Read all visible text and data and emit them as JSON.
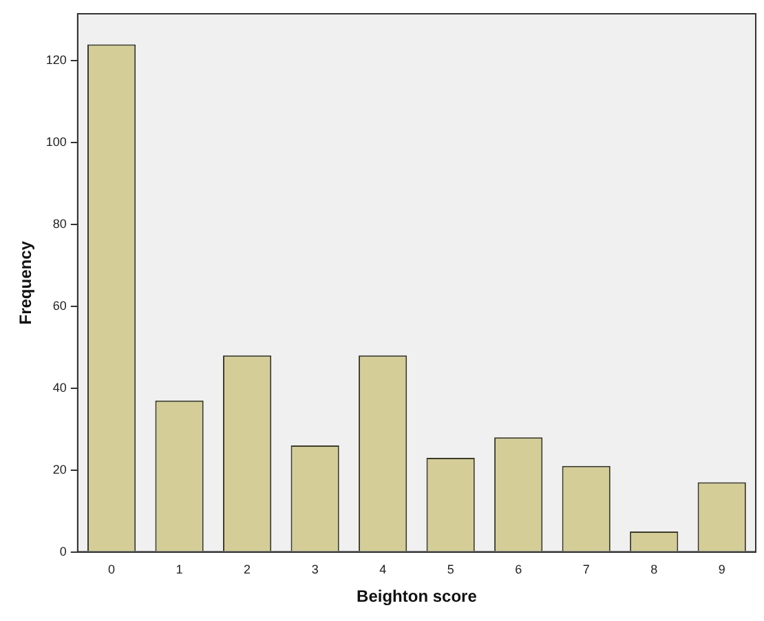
{
  "chart_data": {
    "type": "bar",
    "xlabel": "Beighton score",
    "ylabel": "Frequency",
    "categories": [
      "0",
      "1",
      "2",
      "3",
      "4",
      "5",
      "6",
      "7",
      "8",
      "9"
    ],
    "values": [
      124,
      37,
      48,
      26,
      48,
      23,
      28,
      21,
      5,
      17
    ],
    "color": "#d4cd98",
    "ylim": [
      0,
      131.5
    ],
    "yticks": [
      0,
      20,
      40,
      60,
      80,
      100,
      120
    ],
    "grid": false,
    "legend": false
  }
}
